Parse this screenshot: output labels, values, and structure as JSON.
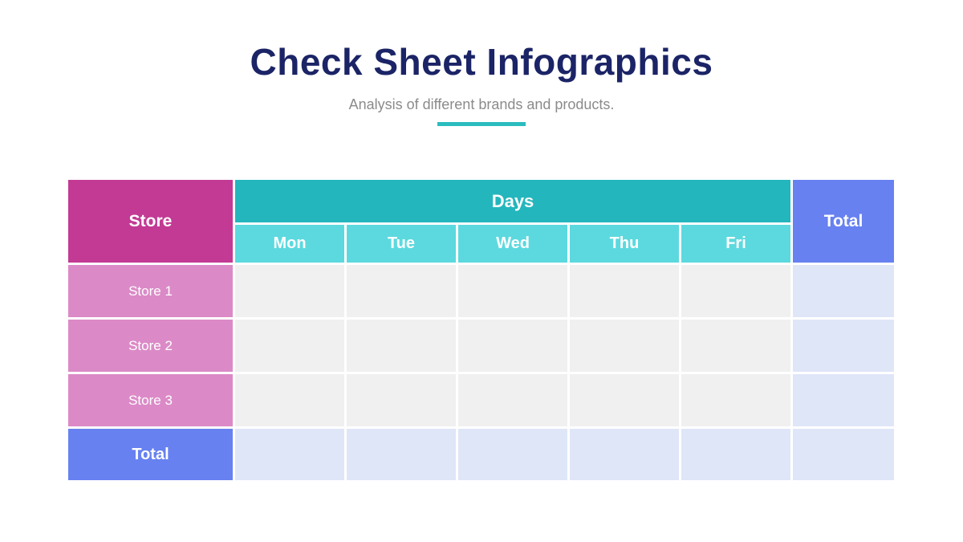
{
  "page": {
    "title": "Check Sheet Infographics",
    "subtitle": "Analysis of different brands and products."
  },
  "colors": {
    "title_navy": "#1b2466",
    "subtitle_gray": "#8b8b8b",
    "accent_teal": "#2bbcbe",
    "store_header_magenta": "#c23a94",
    "days_header_teal": "#24b6bd",
    "day_cell_teal": "#5cd9de",
    "total_header_blue": "#6781f0",
    "store_row_pink": "#db8ac7",
    "empty_cell_gray": "#f0f0f1",
    "total_cell_blue": "#dfe6f8"
  },
  "table": {
    "corner_label": "Store",
    "group_label": "Days",
    "day_columns": [
      "Mon",
      "Tue",
      "Wed",
      "Thu",
      "Fri"
    ],
    "total_column_label": "Total",
    "rows": [
      {
        "label": "Store 1",
        "values": [
          "",
          "",
          "",
          "",
          ""
        ],
        "total": ""
      },
      {
        "label": "Store 2",
        "values": [
          "",
          "",
          "",
          "",
          ""
        ],
        "total": ""
      },
      {
        "label": "Store 3",
        "values": [
          "",
          "",
          "",
          "",
          ""
        ],
        "total": ""
      }
    ],
    "total_row": {
      "label": "Total",
      "values": [
        "",
        "",
        "",
        "",
        ""
      ],
      "total": ""
    }
  }
}
